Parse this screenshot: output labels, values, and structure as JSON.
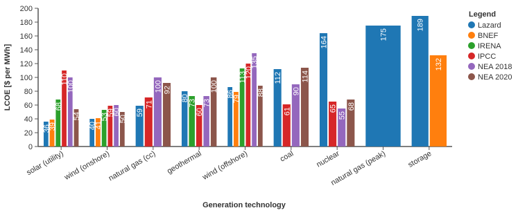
{
  "chart_data": {
    "type": "bar",
    "y_label": "LCOE [$ per MWh]",
    "x_label": "Generation technology",
    "legend_title": "Legend",
    "legend_position": "right",
    "categories": [
      "solar (utility)",
      "wind (onshore)",
      "natural gas (cc)",
      "geothermal",
      "wind (offshore)",
      "coal",
      "nuclear",
      "natural gas (peak)",
      "storage"
    ],
    "series": [
      {
        "name": "Lazard",
        "color": "#1f77b4",
        "values": [
          36,
          40,
          59,
          80,
          86,
          112,
          164,
          175,
          189
        ]
      },
      {
        "name": "BNEF",
        "color": "#ff7f0e",
        "values": [
          39,
          41,
          null,
          null,
          79,
          null,
          null,
          null,
          132
        ]
      },
      {
        "name": "IRENA",
        "color": "#2ca02c",
        "values": [
          68,
          53,
          null,
          73,
          113,
          null,
          null,
          null,
          null
        ]
      },
      {
        "name": "IPCC",
        "color": "#d62728",
        "values": [
          110,
          59,
          71,
          60,
          120,
          61,
          65,
          null,
          null
        ]
      },
      {
        "name": "NEA 2018",
        "color": "#9467bd",
        "values": [
          100,
          60,
          100,
          73,
          135,
          90,
          55,
          null,
          null
        ]
      },
      {
        "name": "NEA 2020",
        "color": "#8c564b",
        "values": [
          54,
          50,
          92,
          100,
          88,
          114,
          68,
          null,
          null
        ]
      }
    ],
    "ylim": [
      0,
      200
    ],
    "yticks": [
      0,
      20,
      40,
      60,
      80,
      100,
      120,
      140,
      160,
      180,
      200
    ]
  }
}
